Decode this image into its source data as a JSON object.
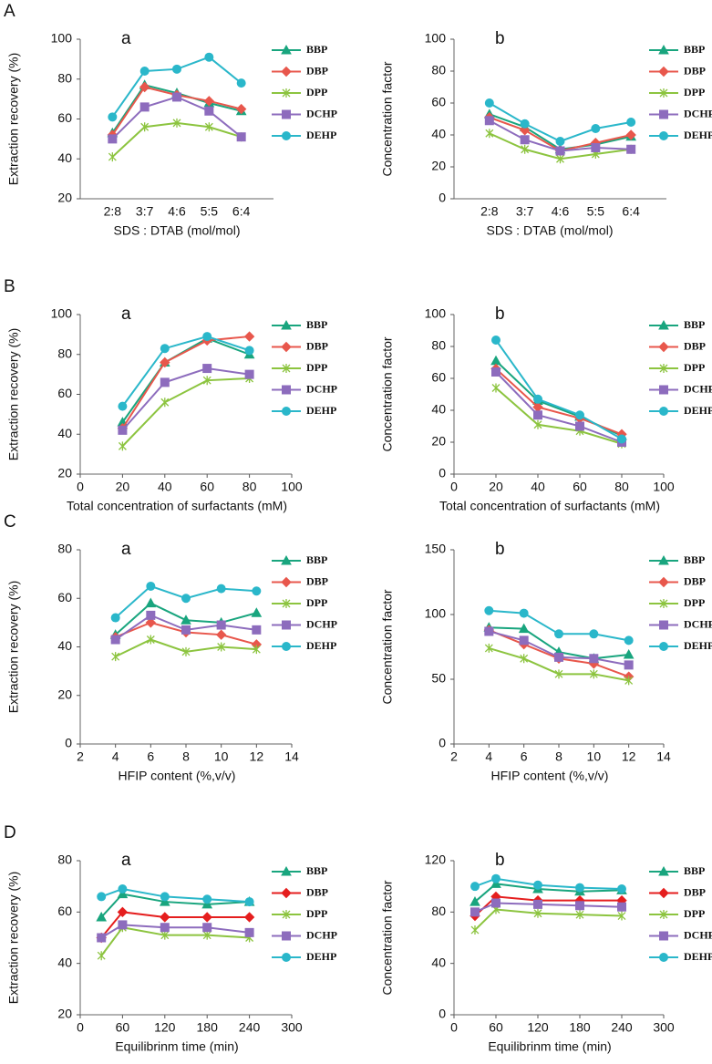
{
  "row_labels": [
    "A",
    "B",
    "C",
    "D"
  ],
  "chart_data": [
    {
      "type": "line",
      "label": "a",
      "xlabel": "SDS : DTAB (mol/mol)",
      "ylabel": "Extraction recovery (%)",
      "categories": [
        "2:8",
        "3:7",
        "4:6",
        "5:5",
        "6:4"
      ],
      "ylim": [
        20,
        100
      ],
      "yticks": [
        20,
        40,
        60,
        80,
        100
      ],
      "legend": "right",
      "series": [
        {
          "name": "BBP",
          "color": "#19a57e",
          "marker": "triangle",
          "values": [
            53,
            77,
            73,
            68,
            64
          ]
        },
        {
          "name": "DBP",
          "color": "#e8574c",
          "marker": "diamond",
          "values": [
            52,
            76,
            72,
            69,
            65
          ]
        },
        {
          "name": "DPP",
          "color": "#8cc43f",
          "marker": "star",
          "values": [
            41,
            56,
            58,
            56,
            51
          ]
        },
        {
          "name": "DCHP",
          "color": "#8d6cbd",
          "marker": "square",
          "values": [
            50,
            66,
            71,
            64,
            51
          ]
        },
        {
          "name": "DEHP",
          "color": "#2ab7ca",
          "marker": "circle",
          "values": [
            61,
            84,
            85,
            91,
            78
          ]
        }
      ]
    },
    {
      "type": "line",
      "label": "b",
      "xlabel": "SDS : DTAB (mol/mol)",
      "ylabel": "Concentration factor",
      "categories": [
        "2:8",
        "3:7",
        "4:6",
        "5:5",
        "6:4"
      ],
      "ylim": [
        0,
        100
      ],
      "yticks": [
        0,
        20,
        40,
        60,
        80,
        100
      ],
      "legend": "right",
      "series": [
        {
          "name": "BBP",
          "color": "#19a57e",
          "marker": "triangle",
          "values": [
            53,
            45,
            31,
            34,
            39
          ]
        },
        {
          "name": "DBP",
          "color": "#e8574c",
          "marker": "diamond",
          "values": [
            51,
            43,
            30,
            35,
            40
          ]
        },
        {
          "name": "DPP",
          "color": "#8cc43f",
          "marker": "star",
          "values": [
            41,
            31,
            25,
            28,
            31
          ]
        },
        {
          "name": "DCHP",
          "color": "#8d6cbd",
          "marker": "square",
          "values": [
            49,
            37,
            30,
            32,
            31
          ]
        },
        {
          "name": "DEHP",
          "color": "#2ab7ca",
          "marker": "circle",
          "values": [
            60,
            47,
            36,
            44,
            48
          ]
        }
      ]
    },
    {
      "type": "line",
      "label": "a",
      "xlabel": "Total concentration of surfactants (mM)",
      "ylabel": "Extraction recovery (%)",
      "x": [
        20,
        40,
        60,
        80
      ],
      "xlim": [
        0,
        100
      ],
      "xticks": [
        0,
        20,
        40,
        60,
        80,
        100
      ],
      "ylim": [
        20,
        100
      ],
      "yticks": [
        20,
        40,
        60,
        80,
        100
      ],
      "legend": "right",
      "series": [
        {
          "name": "BBP",
          "color": "#19a57e",
          "marker": "triangle",
          "values": [
            46,
            76,
            88,
            80
          ]
        },
        {
          "name": "DBP",
          "color": "#e8574c",
          "marker": "diamond",
          "values": [
            43,
            76,
            87,
            89
          ]
        },
        {
          "name": "DPP",
          "color": "#8cc43f",
          "marker": "star",
          "values": [
            34,
            56,
            67,
            68
          ]
        },
        {
          "name": "DCHP",
          "color": "#8d6cbd",
          "marker": "square",
          "values": [
            42,
            66,
            73,
            70
          ]
        },
        {
          "name": "DEHP",
          "color": "#2ab7ca",
          "marker": "circle",
          "values": [
            54,
            83,
            89,
            82
          ]
        }
      ]
    },
    {
      "type": "line",
      "label": "b",
      "xlabel": "Total concentration of surfactants (mM)",
      "ylabel": "Concentration factor",
      "x": [
        20,
        40,
        60,
        80
      ],
      "xlim": [
        0,
        100
      ],
      "xticks": [
        0,
        20,
        40,
        60,
        80,
        100
      ],
      "ylim": [
        0,
        100
      ],
      "yticks": [
        0,
        20,
        40,
        60,
        80,
        100
      ],
      "legend": "right",
      "series": [
        {
          "name": "BBP",
          "color": "#19a57e",
          "marker": "triangle",
          "values": [
            71,
            46,
            36,
            24
          ]
        },
        {
          "name": "DBP",
          "color": "#e8574c",
          "marker": "diamond",
          "values": [
            66,
            42,
            35,
            25
          ]
        },
        {
          "name": "DPP",
          "color": "#8cc43f",
          "marker": "star",
          "values": [
            54,
            31,
            27,
            19
          ]
        },
        {
          "name": "DCHP",
          "color": "#8d6cbd",
          "marker": "square",
          "values": [
            64,
            37,
            30,
            20
          ]
        },
        {
          "name": "DEHP",
          "color": "#2ab7ca",
          "marker": "circle",
          "values": [
            84,
            47,
            37,
            22
          ]
        }
      ]
    },
    {
      "type": "line",
      "label": "a",
      "xlabel": "HFIP content (%,v/v)",
      "ylabel": "Extraction recovery (%)",
      "x": [
        4,
        6,
        8,
        10,
        12
      ],
      "xlim": [
        2,
        14
      ],
      "xticks": [
        2,
        4,
        6,
        8,
        10,
        12,
        14
      ],
      "ylim": [
        0,
        80
      ],
      "yticks": [
        0,
        20,
        40,
        60,
        80
      ],
      "legend": "right",
      "series": [
        {
          "name": "BBP",
          "color": "#19a57e",
          "marker": "triangle",
          "values": [
            45,
            58,
            51,
            50,
            54
          ]
        },
        {
          "name": "DBP",
          "color": "#e8574c",
          "marker": "diamond",
          "values": [
            44,
            50,
            46,
            45,
            41
          ]
        },
        {
          "name": "DPP",
          "color": "#8cc43f",
          "marker": "star",
          "values": [
            36,
            43,
            38,
            40,
            39
          ]
        },
        {
          "name": "DCHP",
          "color": "#8d6cbd",
          "marker": "square",
          "values": [
            43,
            53,
            47,
            49,
            47
          ]
        },
        {
          "name": "DEHP",
          "color": "#2ab7ca",
          "marker": "circle",
          "values": [
            52,
            65,
            60,
            64,
            63
          ]
        }
      ]
    },
    {
      "type": "line",
      "label": "b",
      "xlabel": "HFIP content (%,v/v)",
      "ylabel": "Concentration factor",
      "x": [
        4,
        6,
        8,
        10,
        12
      ],
      "xlim": [
        2,
        14
      ],
      "xticks": [
        2,
        4,
        6,
        8,
        10,
        12,
        14
      ],
      "ylim": [
        0,
        150
      ],
      "yticks": [
        0,
        50,
        100,
        150
      ],
      "legend": "right",
      "series": [
        {
          "name": "BBP",
          "color": "#19a57e",
          "marker": "triangle",
          "values": [
            90,
            89,
            71,
            66,
            69
          ]
        },
        {
          "name": "DBP",
          "color": "#e8574c",
          "marker": "diamond",
          "values": [
            88,
            77,
            66,
            62,
            52
          ]
        },
        {
          "name": "DPP",
          "color": "#8cc43f",
          "marker": "star",
          "values": [
            74,
            66,
            54,
            54,
            49
          ]
        },
        {
          "name": "DCHP",
          "color": "#8d6cbd",
          "marker": "square",
          "values": [
            87,
            80,
            67,
            66,
            61
          ]
        },
        {
          "name": "DEHP",
          "color": "#2ab7ca",
          "marker": "circle",
          "values": [
            103,
            101,
            85,
            85,
            80
          ]
        }
      ]
    },
    {
      "type": "line",
      "label": "a",
      "xlabel": "Equilibrinm time (min)",
      "ylabel": "Extraction recovery (%)",
      "x": [
        30,
        60,
        120,
        180,
        240
      ],
      "xlim": [
        0,
        300
      ],
      "xticks": [
        0,
        60,
        120,
        180,
        240,
        300
      ],
      "ylim": [
        20,
        80
      ],
      "yticks": [
        20,
        40,
        60,
        80
      ],
      "legend": "right",
      "series": [
        {
          "name": "BBP",
          "color": "#19a57e",
          "marker": "triangle",
          "values": [
            58,
            67,
            64,
            63,
            64
          ]
        },
        {
          "name": "DBP",
          "color": "#e51e1e",
          "marker": "diamond",
          "values": [
            50,
            60,
            58,
            58,
            58
          ]
        },
        {
          "name": "DPP",
          "color": "#8cc43f",
          "marker": "star",
          "values": [
            43,
            54,
            51,
            51,
            50
          ]
        },
        {
          "name": "DCHP",
          "color": "#8d6cbd",
          "marker": "square",
          "values": [
            50,
            55,
            54,
            54,
            52
          ]
        },
        {
          "name": "DEHP",
          "color": "#2ab7ca",
          "marker": "circle",
          "values": [
            66,
            69,
            66,
            65,
            64
          ]
        }
      ]
    },
    {
      "type": "line",
      "label": "b",
      "xlabel": "Equilibrinm time (min)",
      "ylabel": "Concentration factor",
      "x": [
        30,
        60,
        120,
        180,
        240
      ],
      "xlim": [
        0,
        300
      ],
      "xticks": [
        0,
        60,
        120,
        180,
        240,
        300
      ],
      "ylim": [
        0,
        120
      ],
      "yticks": [
        0,
        40,
        80,
        120
      ],
      "legend": "right",
      "series": [
        {
          "name": "BBP",
          "color": "#19a57e",
          "marker": "triangle",
          "values": [
            88,
            102,
            98,
            96,
            97
          ]
        },
        {
          "name": "DBP",
          "color": "#e51e1e",
          "marker": "diamond",
          "values": [
            77,
            92,
            89,
            89,
            89
          ]
        },
        {
          "name": "DPP",
          "color": "#8cc43f",
          "marker": "star",
          "values": [
            66,
            82,
            79,
            78,
            77
          ]
        },
        {
          "name": "DCHP",
          "color": "#8d6cbd",
          "marker": "square",
          "values": [
            80,
            87,
            86,
            85,
            84
          ]
        },
        {
          "name": "DEHP",
          "color": "#2ab7ca",
          "marker": "circle",
          "values": [
            100,
            106,
            101,
            99,
            98
          ]
        }
      ]
    }
  ]
}
